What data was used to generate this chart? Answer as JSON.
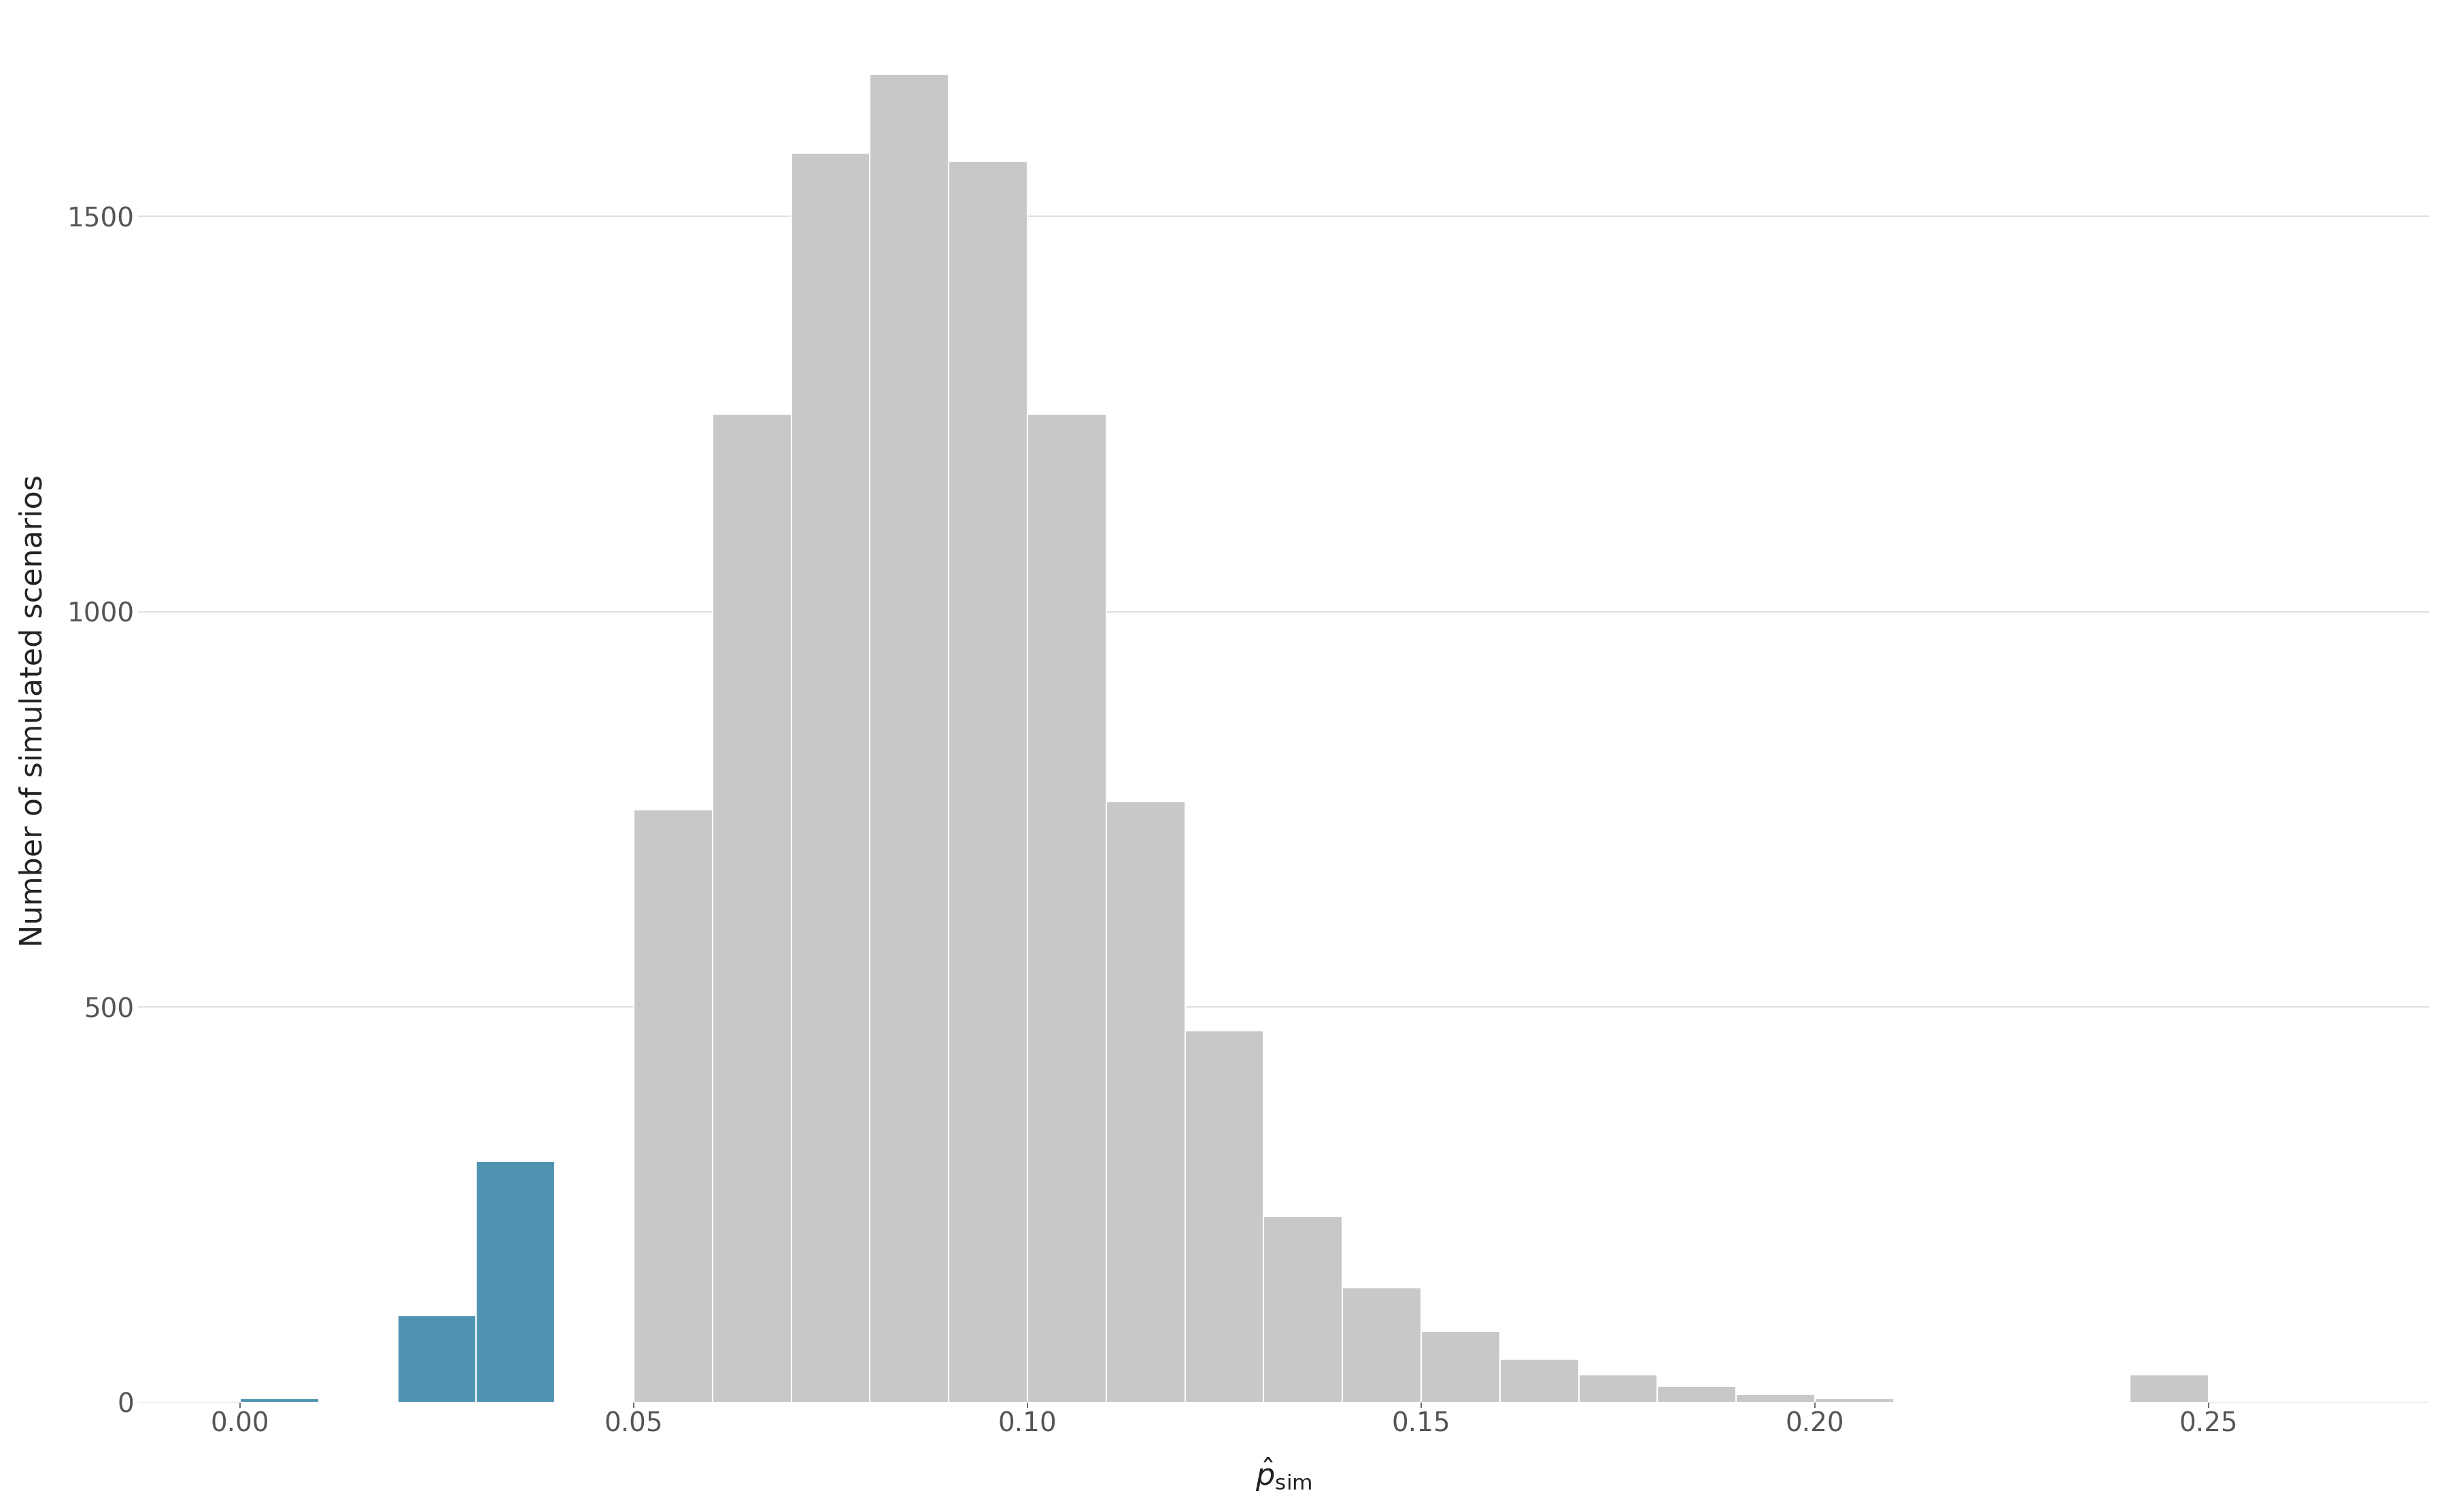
{
  "bin_edges": [
    0.0,
    0.01,
    0.02,
    0.03,
    0.04,
    0.05,
    0.06,
    0.07,
    0.08,
    0.09,
    0.1,
    0.11,
    0.12,
    0.13,
    0.14,
    0.15,
    0.16,
    0.17,
    0.18,
    0.19,
    0.2,
    0.21,
    0.22,
    0.23,
    0.24,
    0.25
  ],
  "counts": [
    5,
    0,
    110,
    305,
    0,
    750,
    1250,
    1580,
    1680,
    1570,
    1250,
    760,
    470,
    235,
    145,
    90,
    55,
    35,
    20,
    10,
    5,
    0,
    0,
    0,
    35
  ],
  "blue_threshold": 0.04,
  "bar_color_blue": "#4f93b0",
  "bar_color_gray": "#c8c8c8",
  "bar_edgecolor": "#ffffff",
  "xlabel": "$\\hat{p}_{\\mathrm{sim}}$",
  "ylabel": "Number of simulated scenarios",
  "xlim": [
    -0.01,
    0.28
  ],
  "ylim": [
    0,
    1750
  ],
  "xticks": [
    0.0,
    0.05,
    0.1,
    0.15,
    0.2,
    0.25
  ],
  "yticks": [
    0,
    500,
    1000,
    1500
  ],
  "background_color": "#ffffff",
  "grid_color": "#e0e0e0",
  "tick_label_color": "#555555",
  "axis_label_color": "#222222",
  "tick_fontsize": 28,
  "label_fontsize": 32
}
